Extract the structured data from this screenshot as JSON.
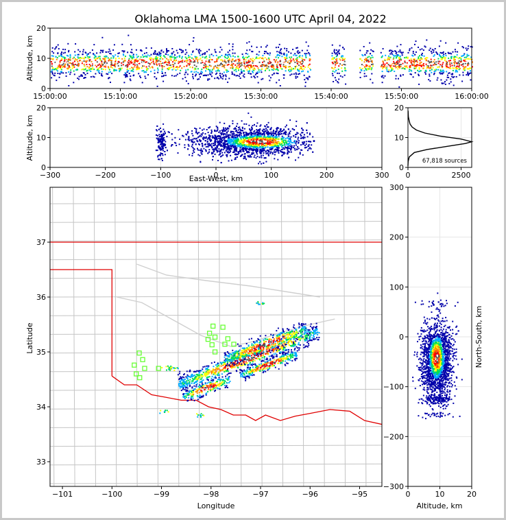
{
  "title": "Oklahoma LMA 1500-1600 UTC April 04, 2022",
  "chart_data": [
    {
      "panel": "time-altitude",
      "type": "heatmap",
      "ylabel": "Altitude, km",
      "xticks": [
        "15:00:00",
        "15:10:00",
        "15:20:00",
        "15:30:00",
        "15:40:00",
        "15:50:00",
        "16:00:00"
      ],
      "yticks": [
        0,
        10,
        20
      ],
      "ylim": [
        0,
        20
      ],
      "xlim_minutes": [
        0,
        60
      ],
      "density_core_altitude_km": 8.5
    },
    {
      "panel": "east-west-altitude",
      "type": "heatmap",
      "xlabel": "East-West, km",
      "ylabel": "Altitude, km",
      "xticks": [
        -300,
        -200,
        -100,
        0,
        100,
        200,
        300
      ],
      "yticks": [
        0,
        10,
        20
      ],
      "xlim": [
        -300,
        300
      ],
      "ylim": [
        0,
        20
      ]
    },
    {
      "panel": "altitude-histogram",
      "type": "line",
      "annotation": "67,818 sources",
      "xticks": [
        0,
        2500
      ],
      "yticks": [
        0,
        10,
        20
      ],
      "xlim": [
        0,
        3000
      ],
      "ylim": [
        0,
        20
      ],
      "x": [
        0,
        10,
        60,
        300,
        900,
        1800,
        2700,
        3000,
        2500,
        1500,
        800,
        400,
        200,
        100,
        60,
        20,
        5
      ],
      "y": [
        0.5,
        2,
        3.5,
        5,
        6,
        7,
        8,
        8.6,
        9.5,
        10.5,
        11.5,
        12.5,
        13.5,
        14.5,
        15.5,
        17,
        19
      ]
    },
    {
      "panel": "plan-view",
      "type": "heatmap",
      "xlabel": "Longitude",
      "ylabel": "Latitude",
      "xticks": [
        -101,
        -100,
        -99,
        -98,
        -97,
        -96,
        -95
      ],
      "yticks": [
        33,
        34,
        35,
        36,
        37
      ],
      "xlim": [
        -101.25,
        -94.55
      ],
      "ylim": [
        32.55,
        38.0
      ]
    },
    {
      "panel": "altitude-north-south",
      "type": "heatmap",
      "xlabel": "Altitude, km",
      "ylabel": "North-South, km",
      "xticks": [
        0,
        10,
        20
      ],
      "yticks": [
        -300,
        -200,
        -100,
        0,
        100,
        200,
        300
      ],
      "xlim": [
        0,
        20
      ],
      "ylim": [
        -300,
        300
      ]
    }
  ],
  "stations": [
    [
      -97.96,
      35.47
    ],
    [
      -97.76,
      35.45
    ],
    [
      -98.03,
      35.34
    ],
    [
      -97.92,
      35.27
    ],
    [
      -98.06,
      35.23
    ],
    [
      -97.66,
      35.24
    ],
    [
      -97.72,
      35.14
    ],
    [
      -97.54,
      35.14
    ],
    [
      -97.98,
      35.13
    ],
    [
      -97.92,
      35.0
    ],
    [
      -99.45,
      34.98
    ],
    [
      -99.38,
      34.86
    ],
    [
      -99.55,
      34.76
    ],
    [
      -99.34,
      34.7
    ],
    [
      -99.06,
      34.7
    ],
    [
      -99.51,
      34.6
    ],
    [
      -99.44,
      34.53
    ]
  ],
  "colors": {
    "state_border": "#e00000",
    "county_lines": "#c4c4c4",
    "station_marker": "#66ff33",
    "density_scale": [
      "#0000aa",
      "#00aaff",
      "#00dd55",
      "#ffff00",
      "#ff8800",
      "#ff0000",
      "#555555",
      "#ffffff"
    ]
  }
}
